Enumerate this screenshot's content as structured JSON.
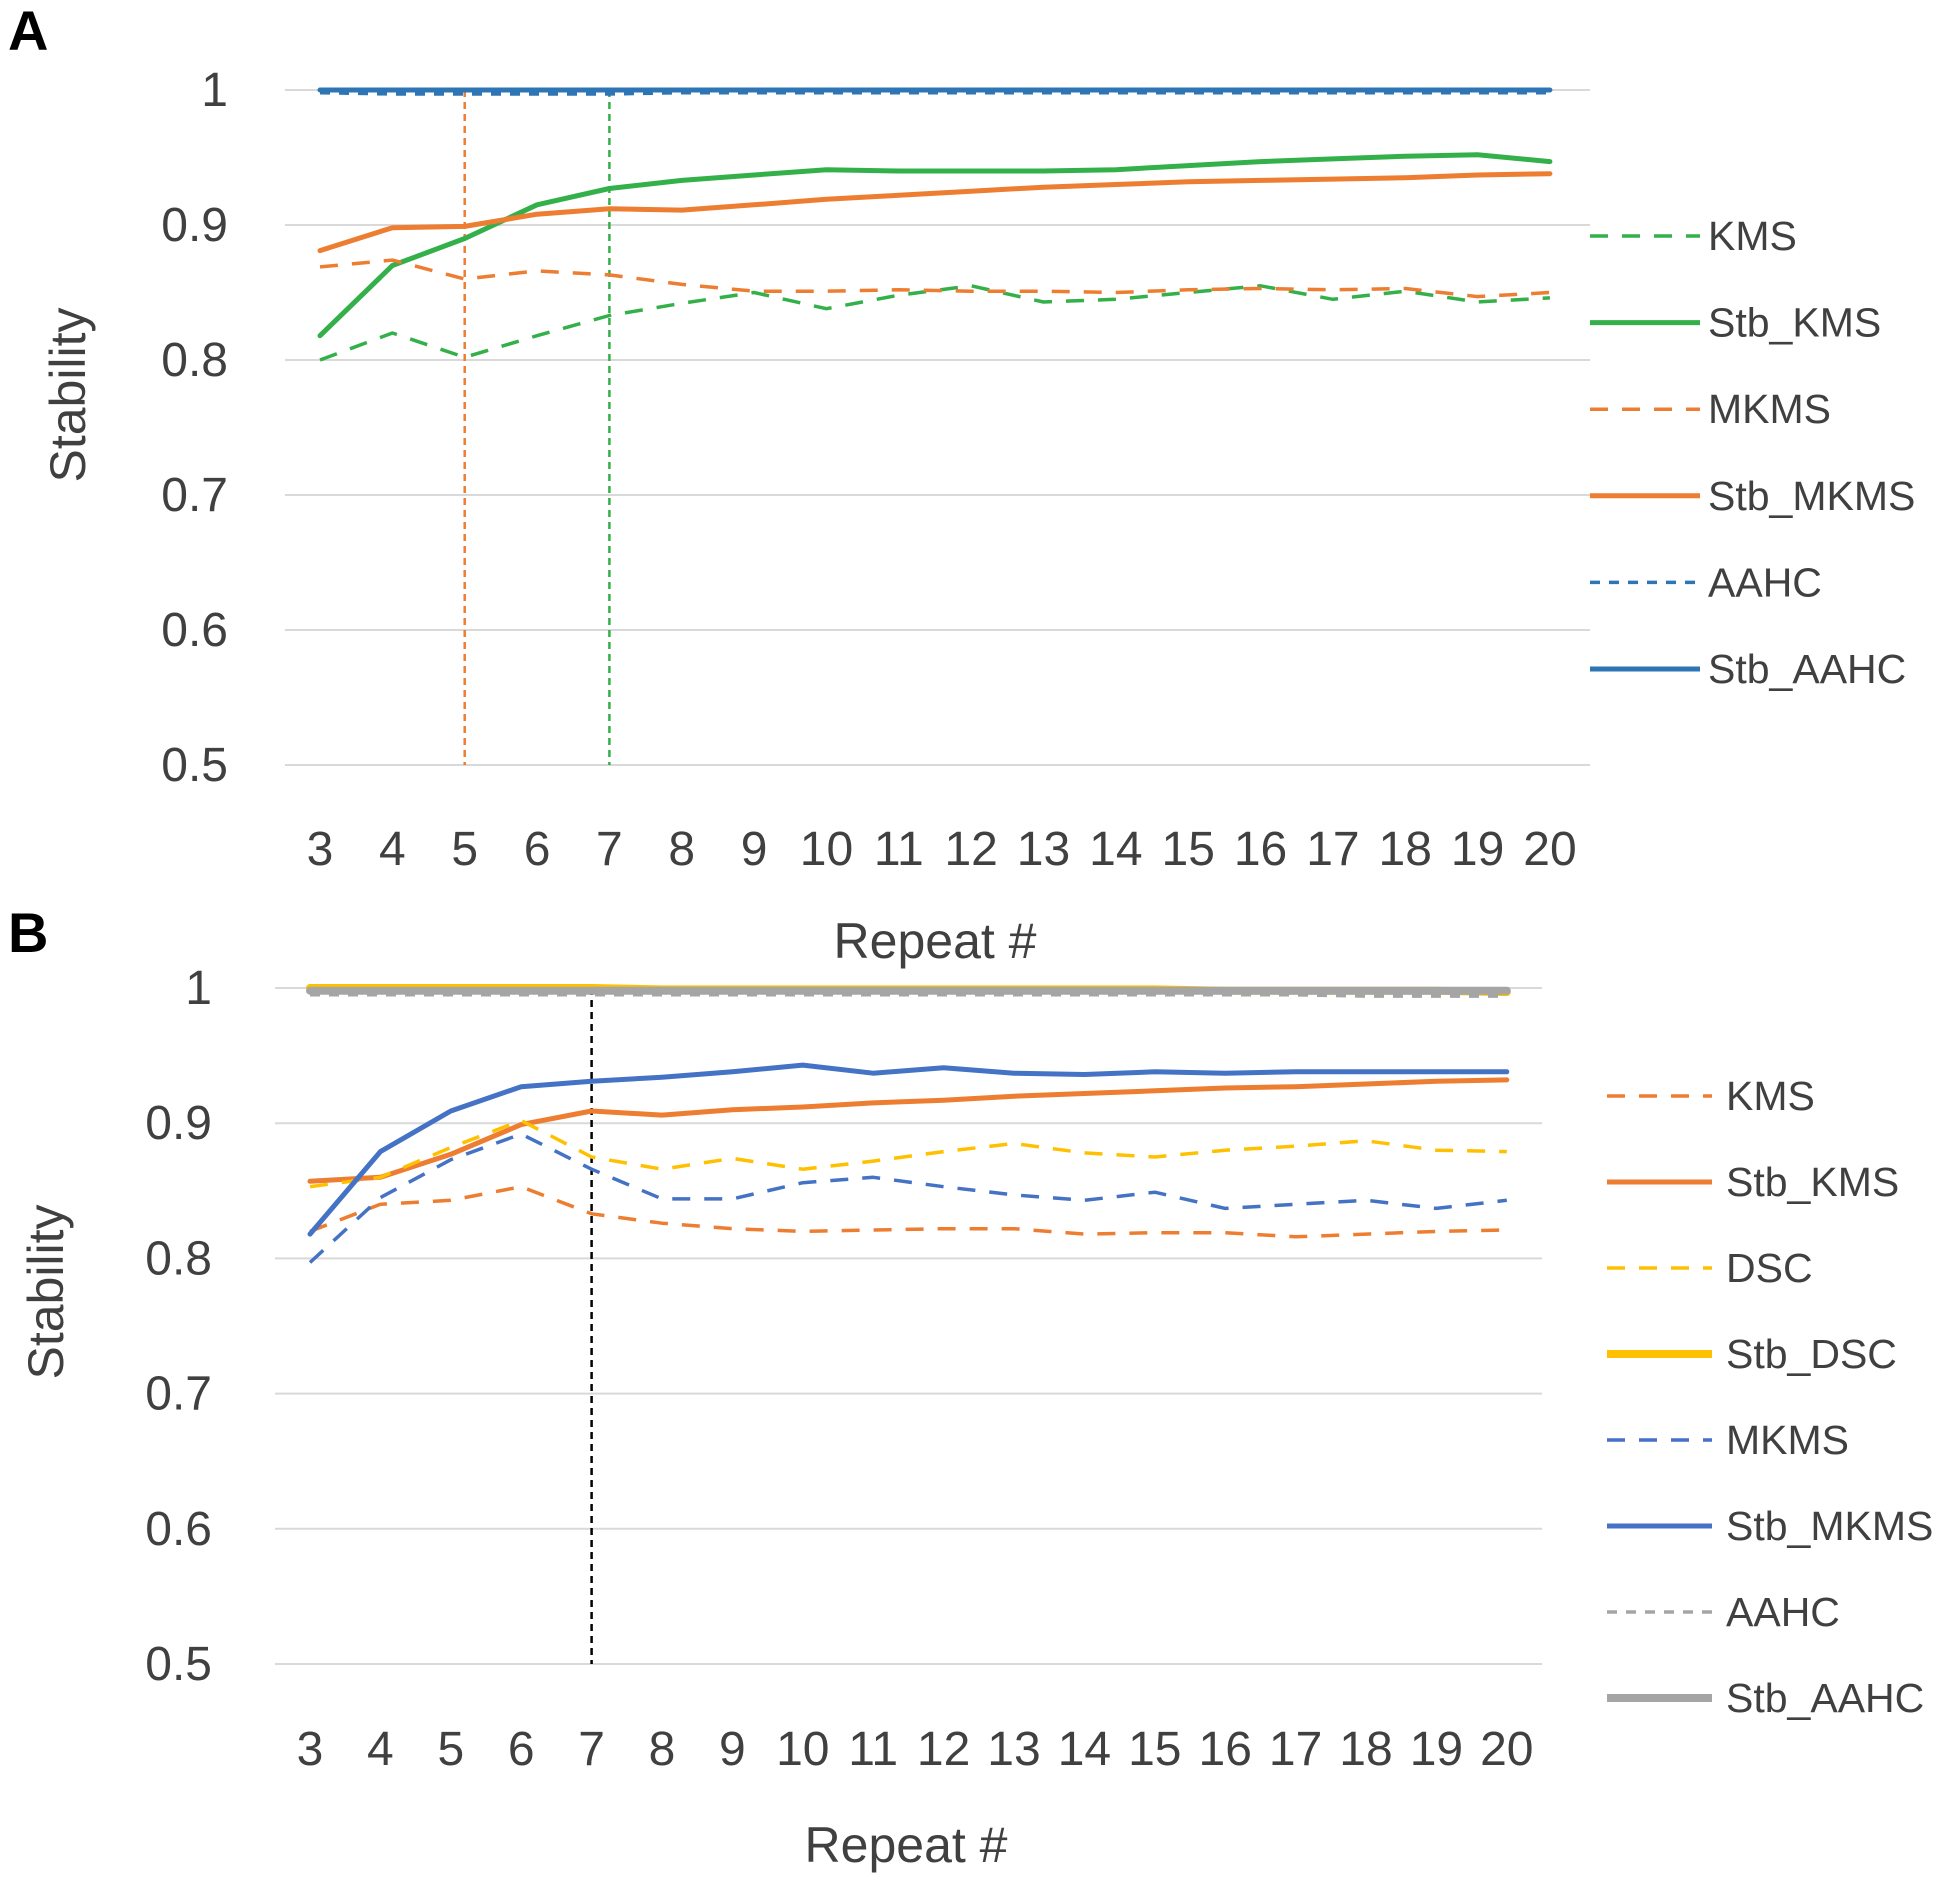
{
  "chart_data": [
    {
      "panel": "A",
      "type": "line",
      "xlabel": "Repeat #",
      "ylabel": "Stability",
      "ylim": [
        0.5,
        1.0
      ],
      "yticks": [
        "0.5",
        "0.6",
        "0.7",
        "0.8",
        "0.9",
        "1"
      ],
      "grid": true,
      "legend_position": "right",
      "categories": [
        "3",
        "4",
        "5",
        "6",
        "7",
        "8",
        "9",
        "10",
        "11",
        "12",
        "13",
        "14",
        "15",
        "16",
        "17",
        "18",
        "19",
        "20"
      ],
      "markers": [
        {
          "x": 5,
          "color": "#ed7d31",
          "style": "dashed"
        },
        {
          "x": 7,
          "color": "#34b04a",
          "style": "dashed"
        }
      ],
      "series": [
        {
          "name": "KMS",
          "color": "#34b04a",
          "style": "dashed",
          "values": [
            0.8,
            0.82,
            0.802,
            0.818,
            0.833,
            0.842,
            0.85,
            0.838,
            0.848,
            0.855,
            0.843,
            0.845,
            0.85,
            0.855,
            0.845,
            0.851,
            0.843,
            0.846
          ]
        },
        {
          "name": "Stb_KMS",
          "color": "#34b04a",
          "style": "solid",
          "values": [
            0.818,
            0.87,
            0.89,
            0.915,
            0.927,
            0.933,
            0.937,
            0.941,
            0.94,
            0.94,
            0.94,
            0.941,
            0.944,
            0.947,
            0.949,
            0.951,
            0.952,
            0.947
          ]
        },
        {
          "name": "MKMS",
          "color": "#ed7d31",
          "style": "dashed",
          "values": [
            0.869,
            0.874,
            0.86,
            0.866,
            0.863,
            0.856,
            0.851,
            0.851,
            0.852,
            0.851,
            0.851,
            0.85,
            0.852,
            0.853,
            0.852,
            0.853,
            0.847,
            0.85
          ]
        },
        {
          "name": "Stb_MKMS",
          "color": "#ed7d31",
          "style": "solid",
          "values": [
            0.881,
            0.898,
            0.899,
            0.908,
            0.912,
            0.911,
            0.915,
            0.919,
            0.922,
            0.925,
            0.928,
            0.93,
            0.932,
            0.933,
            0.934,
            0.935,
            0.937,
            0.938
          ]
        },
        {
          "name": "AAHC",
          "color": "#2e75b6",
          "style": "dashed",
          "values": [
            0.998,
            0.997,
            0.997,
            0.997,
            0.997,
            0.998,
            0.998,
            0.998,
            0.998,
            0.998,
            0.998,
            0.998,
            0.998,
            0.998,
            0.998,
            0.998,
            0.998,
            0.998
          ]
        },
        {
          "name": "Stb_AAHC",
          "color": "#2e75b6",
          "style": "solid",
          "values": [
            1.0,
            1.0,
            1.0,
            1.0,
            1.0,
            1.0,
            1.0,
            1.0,
            1.0,
            1.0,
            1.0,
            1.0,
            1.0,
            1.0,
            1.0,
            1.0,
            1.0,
            1.0
          ]
        }
      ]
    },
    {
      "panel": "B",
      "type": "line",
      "xlabel": "Repeat #",
      "ylabel": "Stability",
      "ylim": [
        0.5,
        1.0
      ],
      "yticks": [
        "0.5",
        "0.6",
        "0.7",
        "0.8",
        "0.9",
        "1"
      ],
      "grid": true,
      "legend_position": "right",
      "categories": [
        "3",
        "4",
        "5",
        "6",
        "7",
        "8",
        "9",
        "10",
        "11",
        "12",
        "13",
        "14",
        "15",
        "16",
        "17",
        "18",
        "19",
        "20"
      ],
      "markers": [
        {
          "x": 7,
          "color": "#000000",
          "style": "dashed"
        }
      ],
      "series": [
        {
          "name": "KMS",
          "color": "#ed7d31",
          "style": "dashed",
          "values": [
            0.82,
            0.84,
            0.843,
            0.853,
            0.833,
            0.826,
            0.822,
            0.82,
            0.821,
            0.822,
            0.822,
            0.818,
            0.819,
            0.819,
            0.816,
            0.818,
            0.82,
            0.821
          ]
        },
        {
          "name": "Stb_KMS",
          "color": "#ed7d31",
          "style": "solid",
          "values": [
            0.857,
            0.86,
            0.877,
            0.899,
            0.909,
            0.906,
            0.91,
            0.912,
            0.915,
            0.917,
            0.92,
            0.922,
            0.924,
            0.926,
            0.927,
            0.929,
            0.931,
            0.932
          ]
        },
        {
          "name": "DSC",
          "color": "#ffc000",
          "style": "dashed",
          "values": [
            0.853,
            0.86,
            0.882,
            0.902,
            0.875,
            0.866,
            0.874,
            0.866,
            0.872,
            0.879,
            0.885,
            0.878,
            0.875,
            0.88,
            0.883,
            0.887,
            0.88,
            0.879
          ]
        },
        {
          "name": "Stb_DSC",
          "color": "#ffc000",
          "style": "solid-thick",
          "values": [
            1.0,
            1.0,
            1.0,
            1.0,
            1.0,
            0.999,
            0.999,
            0.999,
            0.999,
            0.999,
            0.999,
            0.999,
            0.999,
            0.998,
            0.998,
            0.998,
            0.998,
            0.997
          ]
        },
        {
          "name": "MKMS",
          "color": "#4472c4",
          "style": "dashed",
          "values": [
            0.797,
            0.845,
            0.873,
            0.892,
            0.866,
            0.844,
            0.844,
            0.856,
            0.86,
            0.853,
            0.847,
            0.843,
            0.849,
            0.837,
            0.84,
            0.843,
            0.837,
            0.843
          ]
        },
        {
          "name": "Stb_MKMS",
          "color": "#4472c4",
          "style": "solid",
          "values": [
            0.818,
            0.879,
            0.909,
            0.927,
            0.931,
            0.934,
            0.938,
            0.943,
            0.937,
            0.941,
            0.937,
            0.936,
            0.938,
            0.937,
            0.938,
            0.938,
            0.938,
            0.938
          ]
        },
        {
          "name": "AAHC",
          "color": "#a5a5a5",
          "style": "dashed",
          "values": [
            0.995,
            0.995,
            0.995,
            0.995,
            0.995,
            0.995,
            0.995,
            0.995,
            0.995,
            0.995,
            0.995,
            0.995,
            0.995,
            0.995,
            0.995,
            0.994,
            0.994,
            0.994
          ]
        },
        {
          "name": "Stb_AAHC",
          "color": "#a5a5a5",
          "style": "solid-thick",
          "values": [
            0.998,
            0.998,
            0.998,
            0.998,
            0.998,
            0.998,
            0.998,
            0.998,
            0.998,
            0.998,
            0.998,
            0.998,
            0.998,
            0.998,
            0.998,
            0.998,
            0.998,
            0.998
          ]
        }
      ]
    }
  ]
}
